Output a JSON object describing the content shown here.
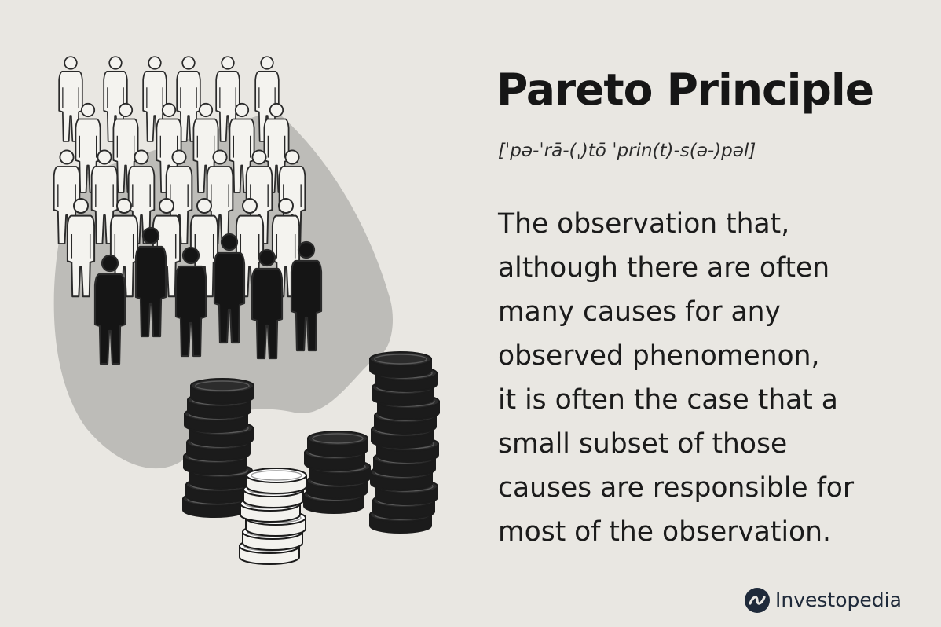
{
  "title": "Pareto Principle",
  "pronunciation": "[ˈpə-ˈrā-(ˌ)tō ˈprin(t)-s(ə-)pəl]",
  "definition_lines": [
    "The observation that,",
    "although there are often",
    "many causes for any",
    "observed phenomenon,",
    "it is often the case that a",
    "small subset of those",
    "causes are responsible for",
    "most of the observation."
  ],
  "brand": {
    "name": "Investopedia",
    "icon": "investopedia-logo-icon"
  },
  "illustration": {
    "icon": "crowd-and-coin-stacks-illustration",
    "crowd": {
      "highlighted_people": 6
    },
    "colors": {
      "background": "#e9e7e2",
      "shadow": "#bdbcb8",
      "figure_outline": "#2a2a2a",
      "figure_fill": "#f4f3ef",
      "figure_dark": "#151515",
      "coin_dark": "#1b1b1b",
      "coin_light": "#f3f2ee"
    }
  }
}
